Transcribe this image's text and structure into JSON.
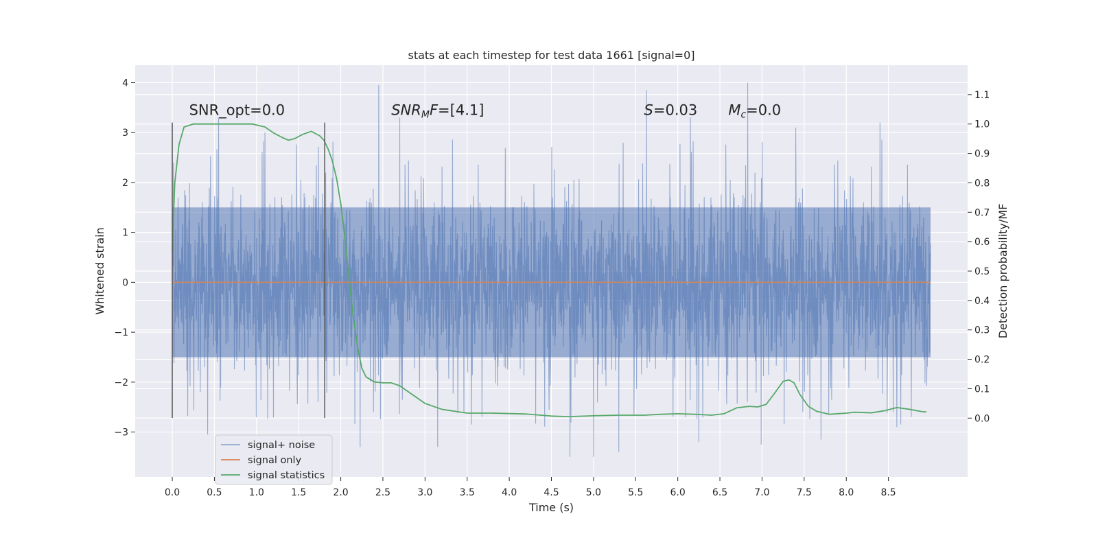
{
  "chart_data": {
    "type": "line",
    "title": "stats at each timestep for test data 1661 [signal=0]",
    "xlabel": "Time (s)",
    "ylabel": "Whitened strain",
    "ylabel_right": "Detection probability/MF",
    "xlim": [
      -0.44,
      9.44
    ],
    "ylim": [
      -3.9,
      4.35
    ],
    "ylim_right": [
      -0.2,
      1.2
    ],
    "x_ticks": [
      0.0,
      0.5,
      1.0,
      1.5,
      2.0,
      2.5,
      3.0,
      3.5,
      4.0,
      4.5,
      5.0,
      5.5,
      6.0,
      6.5,
      7.0,
      7.5,
      8.0,
      8.5
    ],
    "x_tick_labels": [
      "0.0",
      "0.5",
      "1.0",
      "1.5",
      "2.0",
      "2.5",
      "3.0",
      "3.5",
      "4.0",
      "4.5",
      "5.0",
      "5.5",
      "6.0",
      "6.5",
      "7.0",
      "7.5",
      "8.0",
      "8.5"
    ],
    "y_ticks": [
      -3,
      -2,
      -1,
      0,
      1,
      2,
      3,
      4
    ],
    "y_tick_labels": [
      "−3",
      "−2",
      "−1",
      "0",
      "1",
      "2",
      "3",
      "4"
    ],
    "y_ticks_right": [
      0.0,
      0.1,
      0.2,
      0.3,
      0.4,
      0.5,
      0.6,
      0.7,
      0.8,
      0.9,
      1.0,
      1.1
    ],
    "y_tick_labels_right": [
      "0.0",
      "0.1",
      "0.2",
      "0.3",
      "0.4",
      "0.5",
      "0.6",
      "0.7",
      "0.8",
      "0.9",
      "1.0",
      "1.1"
    ],
    "grid": true,
    "legend_position": "bottom-left",
    "series": [
      {
        "name": "signal+ noise",
        "axis": "left",
        "color": "#4c72b0",
        "x_range": [
          0.0,
          9.0
        ],
        "typical_range": [
          -1.5,
          1.5
        ],
        "extremes": [
          [
            0.55,
            3.3
          ],
          [
            1.1,
            3.0
          ],
          [
            2.45,
            3.95
          ],
          [
            2.7,
            3.3
          ],
          [
            5.63,
            3.85
          ],
          [
            6.15,
            3.3
          ],
          [
            6.83,
            4.0
          ],
          [
            7.4,
            3.1
          ],
          [
            8.4,
            3.2
          ],
          [
            0.42,
            -3.05
          ],
          [
            2.23,
            -3.3
          ],
          [
            3.15,
            -3.3
          ],
          [
            4.72,
            -3.5
          ],
          [
            5.0,
            -3.5
          ],
          [
            5.3,
            -3.4
          ],
          [
            6.25,
            -3.2
          ],
          [
            6.99,
            -3.25
          ],
          [
            7.7,
            -3.15
          ],
          [
            8.6,
            -2.9
          ]
        ]
      },
      {
        "name": "signal only",
        "axis": "left",
        "color": "#dd8452",
        "points": [
          [
            0.0,
            0.0
          ],
          [
            9.0,
            0.0
          ]
        ]
      },
      {
        "name": "signal statistics",
        "axis": "right",
        "color": "#55a868",
        "points": [
          [
            0.0,
            0.57
          ],
          [
            0.03,
            0.8
          ],
          [
            0.08,
            0.93
          ],
          [
            0.14,
            0.99
          ],
          [
            0.25,
            1.0
          ],
          [
            0.6,
            1.0
          ],
          [
            0.95,
            1.0
          ],
          [
            1.1,
            0.99
          ],
          [
            1.2,
            0.97
          ],
          [
            1.3,
            0.955
          ],
          [
            1.38,
            0.945
          ],
          [
            1.45,
            0.95
          ],
          [
            1.55,
            0.965
          ],
          [
            1.65,
            0.975
          ],
          [
            1.75,
            0.96
          ],
          [
            1.8,
            0.945
          ],
          [
            1.85,
            0.915
          ],
          [
            1.9,
            0.875
          ],
          [
            1.95,
            0.815
          ],
          [
            2.0,
            0.73
          ],
          [
            2.05,
            0.61
          ],
          [
            2.1,
            0.47
          ],
          [
            2.15,
            0.34
          ],
          [
            2.2,
            0.24
          ],
          [
            2.25,
            0.17
          ],
          [
            2.3,
            0.14
          ],
          [
            2.4,
            0.123
          ],
          [
            2.5,
            0.12
          ],
          [
            2.6,
            0.12
          ],
          [
            2.7,
            0.11
          ],
          [
            2.8,
            0.09
          ],
          [
            2.9,
            0.07
          ],
          [
            3.0,
            0.05
          ],
          [
            3.2,
            0.03
          ],
          [
            3.5,
            0.017
          ],
          [
            3.8,
            0.017
          ],
          [
            4.2,
            0.014
          ],
          [
            4.5,
            0.007
          ],
          [
            4.7,
            0.005
          ],
          [
            5.0,
            0.008
          ],
          [
            5.3,
            0.01
          ],
          [
            5.6,
            0.01
          ],
          [
            5.8,
            0.013
          ],
          [
            6.0,
            0.015
          ],
          [
            6.2,
            0.013
          ],
          [
            6.4,
            0.01
          ],
          [
            6.55,
            0.015
          ],
          [
            6.7,
            0.035
          ],
          [
            6.85,
            0.04
          ],
          [
            6.95,
            0.038
          ],
          [
            7.05,
            0.047
          ],
          [
            7.15,
            0.085
          ],
          [
            7.25,
            0.125
          ],
          [
            7.32,
            0.13
          ],
          [
            7.38,
            0.12
          ],
          [
            7.45,
            0.08
          ],
          [
            7.55,
            0.04
          ],
          [
            7.65,
            0.023
          ],
          [
            7.8,
            0.013
          ],
          [
            8.0,
            0.017
          ],
          [
            8.1,
            0.02
          ],
          [
            8.3,
            0.018
          ],
          [
            8.45,
            0.025
          ],
          [
            8.6,
            0.036
          ],
          [
            8.75,
            0.03
          ],
          [
            8.9,
            0.022
          ],
          [
            8.95,
            0.021
          ]
        ]
      }
    ],
    "vertical_lines": [
      {
        "x": 0.0,
        "y_range": [
          -2.72,
          3.2
        ],
        "color": "#555555"
      },
      {
        "x": 1.81,
        "y_range": [
          -2.72,
          3.2
        ],
        "color": "#555555"
      }
    ],
    "annotations": [
      {
        "x": 0.2,
        "y": 3.35,
        "parts": [
          {
            "text": "SNR_opt=0.0"
          }
        ]
      },
      {
        "x": 2.6,
        "y": 3.35,
        "parts": [
          {
            "text": "SNR",
            "style": "italic"
          },
          {
            "text": "M",
            "style": "italic-sub"
          },
          {
            "text": "F",
            "style": "italic"
          },
          {
            "text": "=[4.1]"
          }
        ]
      },
      {
        "x": 5.6,
        "y": 3.35,
        "parts": [
          {
            "text": "S",
            "style": "italic"
          },
          {
            "text": "=0.03"
          }
        ]
      },
      {
        "x": 6.6,
        "y": 3.35,
        "parts": [
          {
            "text": "M",
            "style": "italic"
          },
          {
            "text": "c",
            "style": "italic-sub"
          },
          {
            "text": "=0.0"
          }
        ]
      }
    ],
    "background_color": "#eaeaf2",
    "grid_color": "#ffffff"
  }
}
